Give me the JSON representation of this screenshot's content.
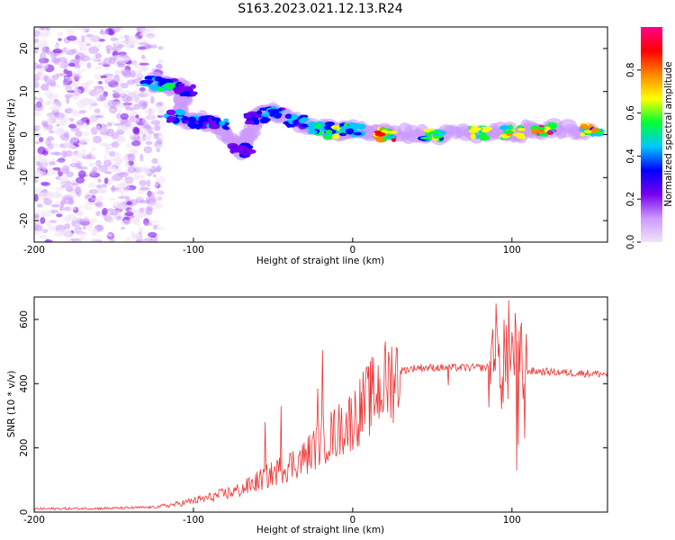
{
  "title": "S163.2023.021.12.13.R24",
  "chart_data": [
    {
      "type": "heatmap",
      "xlabel": "Height of straight line (km)",
      "ylabel": "Frequency (Hz)",
      "xlim": [
        -200,
        160
      ],
      "ylim": [
        -25,
        25
      ],
      "xticks": [
        -200,
        -100,
        0,
        100
      ],
      "yticks": [
        -20,
        -10,
        0,
        10,
        20
      ],
      "colorbar": {
        "label": "Normalized spectral amplitude",
        "range": [
          0,
          1
        ],
        "ticks": [
          0.0,
          0.2,
          0.4,
          0.6,
          0.8
        ],
        "colormap": [
          "#f0e4f8",
          "#cc99ff",
          "#7700ee",
          "#0000ff",
          "#00c8ff",
          "#00ff33",
          "#ffff00",
          "#ff8800",
          "#ff0000",
          "#ff0088"
        ]
      },
      "ridge": [
        {
          "x": -125,
          "y": 12,
          "amp": 0.45
        },
        {
          "x": -115,
          "y": 11.5,
          "amp": 0.5
        },
        {
          "x": -105,
          "y": 10.5,
          "amp": 0.3
        },
        {
          "x": -110,
          "y": 4,
          "amp": 0.4
        },
        {
          "x": -95,
          "y": 3,
          "amp": 0.4
        },
        {
          "x": -85,
          "y": 2.5,
          "amp": 0.45
        },
        {
          "x": -70,
          "y": -3.5,
          "amp": 0.35
        },
        {
          "x": -60,
          "y": 4,
          "amp": 0.35
        },
        {
          "x": -50,
          "y": 5,
          "amp": 0.45
        },
        {
          "x": -35,
          "y": 3,
          "amp": 0.4
        },
        {
          "x": -20,
          "y": 1.5,
          "amp": 0.55
        },
        {
          "x": -10,
          "y": 0.5,
          "amp": 0.6
        },
        {
          "x": 0,
          "y": 1,
          "amp": 0.55
        },
        {
          "x": 20,
          "y": 0,
          "amp": 0.95
        },
        {
          "x": 50,
          "y": 0,
          "amp": 0.6
        },
        {
          "x": 80,
          "y": 0.5,
          "amp": 0.65
        },
        {
          "x": 100,
          "y": 0.5,
          "amp": 0.7
        },
        {
          "x": 120,
          "y": 1,
          "amp": 0.9
        },
        {
          "x": 150,
          "y": 1,
          "amp": 0.75
        }
      ]
    },
    {
      "type": "line",
      "xlabel": "Height of straight line (km)",
      "ylabel": "SNR (10 * v/v)",
      "xlim": [
        -200,
        160
      ],
      "ylim": [
        0,
        670
      ],
      "xticks": [
        -200,
        -100,
        0,
        100
      ],
      "yticks": [
        0,
        200,
        400,
        600
      ],
      "color": "#ee3333",
      "envelope": {
        "x": [
          -200,
          -150,
          -125,
          -110,
          -90,
          -70,
          -50,
          -30,
          -20,
          -10,
          0,
          10,
          20,
          30,
          40,
          60,
          80,
          90,
          100,
          110,
          130,
          160
        ],
        "y": [
          10,
          12,
          15,
          25,
          45,
          70,
          120,
          170,
          220,
          250,
          290,
          350,
          400,
          440,
          450,
          450,
          450,
          450,
          445,
          440,
          435,
          430
        ]
      },
      "spikes": [
        {
          "x": -19,
          "y": 505
        },
        {
          "x": -22,
          "y": 385
        },
        {
          "x": -45,
          "y": 330
        },
        {
          "x": -55,
          "y": 280
        },
        {
          "x": 60,
          "y": 395
        },
        {
          "x": 88,
          "y": 570
        },
        {
          "x": 90,
          "y": 650
        },
        {
          "x": 95,
          "y": 600
        },
        {
          "x": 98,
          "y": 660
        },
        {
          "x": 100,
          "y": 560
        },
        {
          "x": 102,
          "y": 620
        },
        {
          "x": 104,
          "y": 210
        },
        {
          "x": 103,
          "y": 130
        },
        {
          "x": 106,
          "y": 590
        },
        {
          "x": 108,
          "y": 230
        }
      ]
    }
  ]
}
